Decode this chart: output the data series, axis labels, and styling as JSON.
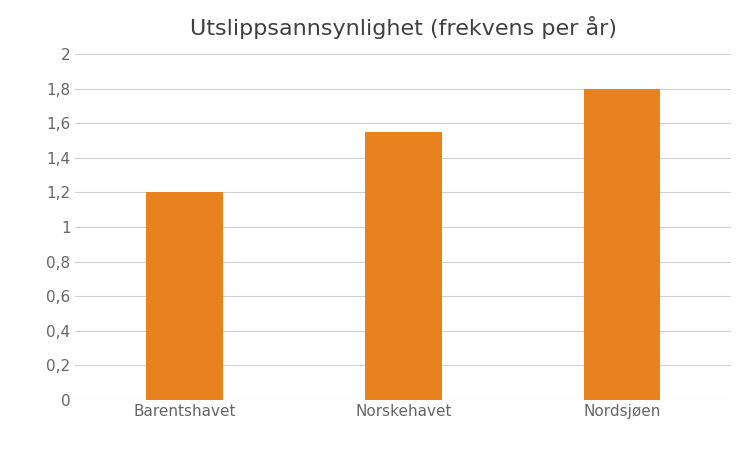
{
  "title": "Utslippsannsynlighet (frekvens per år)",
  "categories": [
    "Barentshavet",
    "Norskehavet",
    "Nordsjøen"
  ],
  "values": [
    1.2,
    1.55,
    1.8
  ],
  "bar_color": "#E8821E",
  "ylim": [
    0,
    2.0
  ],
  "yticks": [
    0,
    0.2,
    0.4,
    0.6,
    0.8,
    1.0,
    1.2,
    1.4,
    1.6,
    1.8,
    2.0
  ],
  "ytick_labels": [
    "0",
    "0,2",
    "0,4",
    "0,6",
    "0,8",
    "1",
    "1,2",
    "1,4",
    "1,6",
    "1,8",
    "2"
  ],
  "background_color": "#ffffff",
  "title_fontsize": 16,
  "tick_fontsize": 11,
  "bar_width": 0.35,
  "title_color": "#404040",
  "tick_color": "#666666",
  "grid_color": "#d0d0d0"
}
